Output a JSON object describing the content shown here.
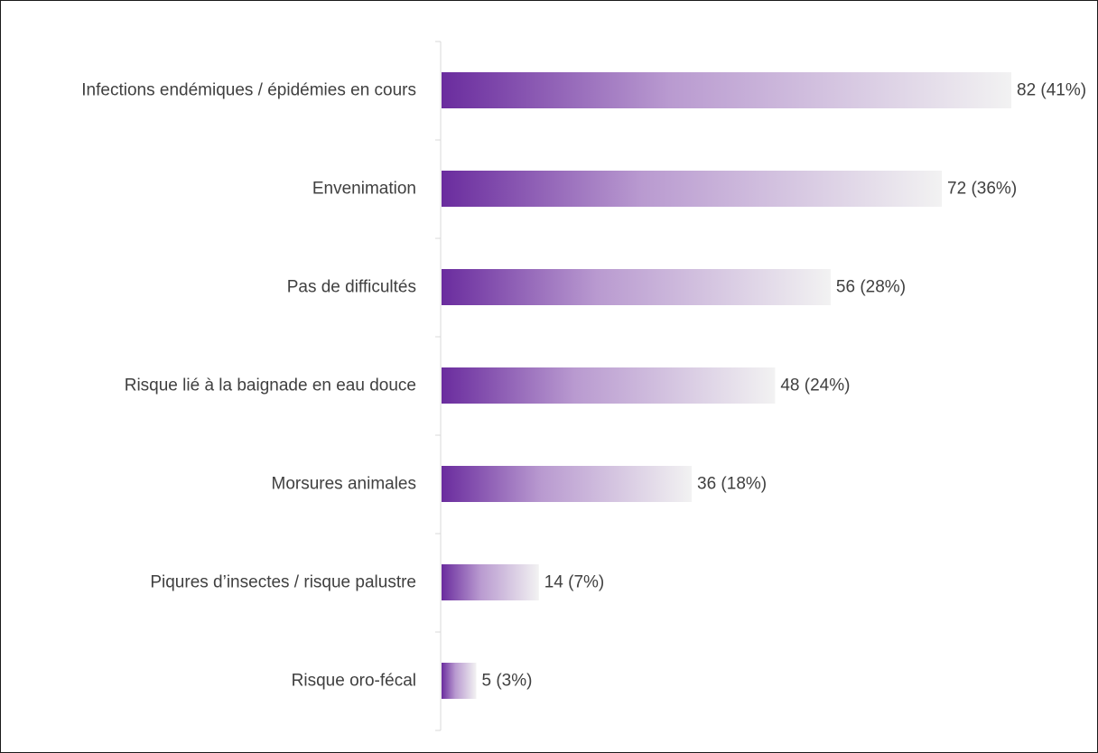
{
  "chart_data": {
    "type": "bar",
    "orientation": "horizontal",
    "categories": [
      "Infections endémiques / épidémies en cours",
      "Envenimation",
      "Pas de difficultés",
      "Risque lié à la baignade en eau douce",
      "Morsures animales",
      "Piqures d’insectes  / risque palustre",
      "Risque oro-fécal"
    ],
    "values": [
      82,
      72,
      56,
      48,
      36,
      14,
      5
    ],
    "data_labels": [
      "82 (41%)",
      "72 (36%)",
      "56 (28%)",
      "48 (24%)",
      "36 (18%)",
      "14 (7%)",
      "5 (3%)"
    ],
    "xlim": [
      0,
      82
    ],
    "grid": false,
    "legend": "none",
    "colors": {
      "bar_start": "#6a2c9e",
      "bar_mid": "#b99ad0",
      "bar_end": "#f2f2f2",
      "axis": "#d9d9d9",
      "text": "#404040",
      "frame": "#1a1a1a"
    }
  }
}
